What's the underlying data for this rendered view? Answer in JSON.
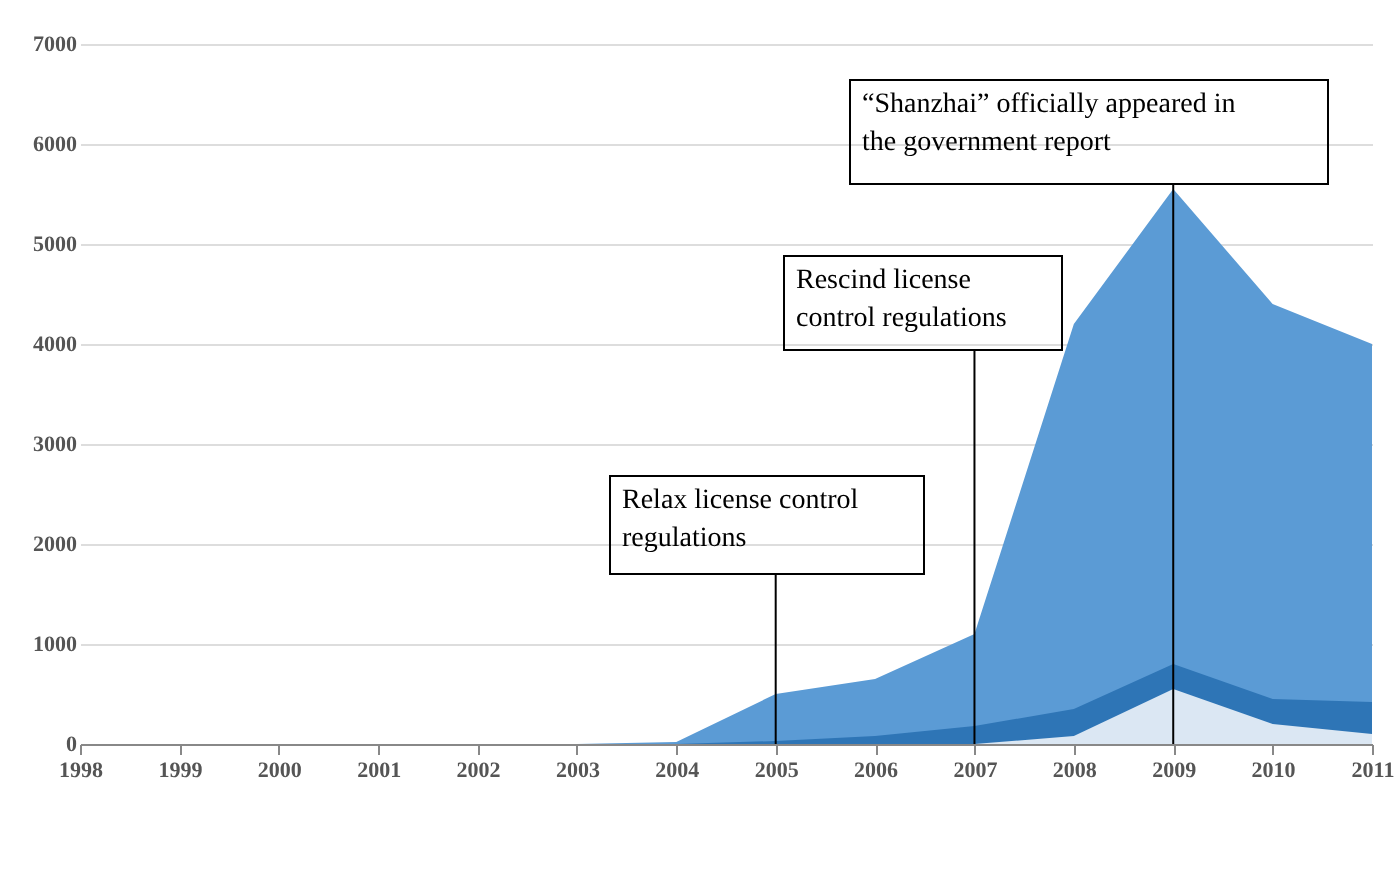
{
  "chart_data": {
    "type": "area",
    "x": [
      1998,
      1999,
      2000,
      2001,
      2002,
      2003,
      2004,
      2005,
      2006,
      2007,
      2008,
      2009,
      2010,
      2011
    ],
    "series": [
      {
        "color": "#5b9bd5",
        "values": [
          0,
          0,
          0,
          0,
          0,
          0,
          20,
          500,
          650,
          1100,
          4200,
          5550,
          4400,
          4000
        ]
      },
      {
        "color": "#2e75b6",
        "values": [
          0,
          0,
          0,
          0,
          0,
          0,
          0,
          30,
          80,
          180,
          350,
          800,
          450,
          420
        ]
      },
      {
        "color": "#dbe7f3",
        "values": [
          0,
          0,
          0,
          0,
          0,
          0,
          0,
          0,
          0,
          0,
          80,
          550,
          200,
          100
        ]
      }
    ],
    "xlim": [
      1998,
      2011
    ],
    "xticks": [
      1998,
      1999,
      2000,
      2001,
      2002,
      2003,
      2004,
      2005,
      2006,
      2007,
      2008,
      2009,
      2010,
      2011
    ],
    "ylim": [
      0,
      7000
    ],
    "yticks": [
      0,
      1000,
      2000,
      3000,
      4000,
      5000,
      6000,
      7000
    ],
    "grid": "y",
    "ref_lines": [
      {
        "axis": "x",
        "value": 2005,
        "label": "Relax license control regulations"
      },
      {
        "axis": "x",
        "value": 2007,
        "label": "Rescind license control regulations"
      },
      {
        "axis": "x",
        "value": 2009,
        "label": "“Shanzhai” officially appeared in the government report"
      }
    ]
  }
}
